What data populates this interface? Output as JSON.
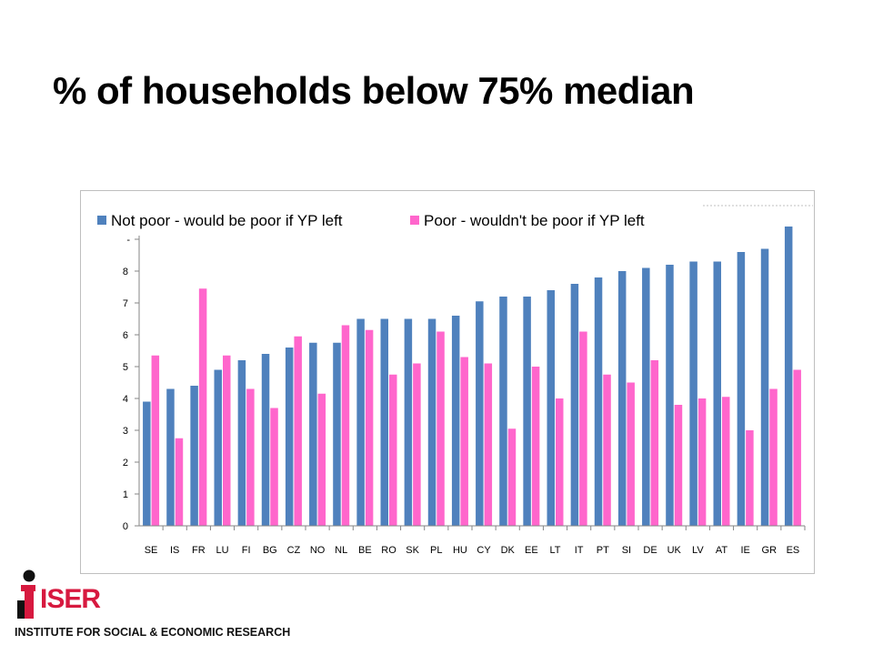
{
  "slide": {
    "title": "% of households below 75% median"
  },
  "logo": {
    "wordmark": "ISER",
    "tagline": "INSTITUTE FOR SOCIAL & ECONOMIC RESEARCH",
    "colors": {
      "red": "#d7193f",
      "dark": "#111111"
    }
  },
  "chart_data": {
    "type": "bar",
    "title": "% of households below 75% median",
    "xlabel": "",
    "ylabel": "",
    "ylim": [
      0,
      9
    ],
    "yticks": [
      "0",
      "1",
      "2",
      "3",
      "4",
      "5",
      "6",
      "7",
      "8",
      "-"
    ],
    "grid": false,
    "legend_position": "top",
    "categories": [
      "SE",
      "IS",
      "FR",
      "LU",
      "FI",
      "BG",
      "CZ",
      "NO",
      "NL",
      "BE",
      "RO",
      "SK",
      "PL",
      "HU",
      "CY",
      "DK",
      "EE",
      "LT",
      "IT",
      "PT",
      "SI",
      "DE",
      "UK",
      "LV",
      "AT",
      "IE",
      "GR",
      "ES"
    ],
    "series": [
      {
        "name": "Not poor - would be poor if YP left",
        "color": "#4f81bd",
        "values": [
          3.9,
          4.3,
          4.4,
          4.9,
          5.2,
          5.4,
          5.6,
          5.75,
          5.75,
          6.5,
          6.5,
          6.5,
          6.5,
          6.6,
          7.05,
          7.2,
          7.2,
          7.4,
          7.6,
          7.8,
          8.0,
          8.1,
          8.2,
          8.3,
          8.3,
          8.6,
          8.7,
          9.4
        ]
      },
      {
        "name": "Poor - wouldn't be poor if YP left",
        "color": "#ff66cc",
        "values": [
          5.35,
          2.75,
          7.45,
          5.35,
          4.3,
          3.7,
          5.95,
          4.15,
          6.3,
          6.15,
          4.75,
          5.1,
          6.1,
          5.3,
          5.1,
          3.05,
          5.0,
          4.0,
          6.1,
          4.75,
          4.5,
          5.2,
          3.8,
          4.0,
          4.05,
          3.0,
          4.3,
          4.9
        ]
      }
    ]
  }
}
